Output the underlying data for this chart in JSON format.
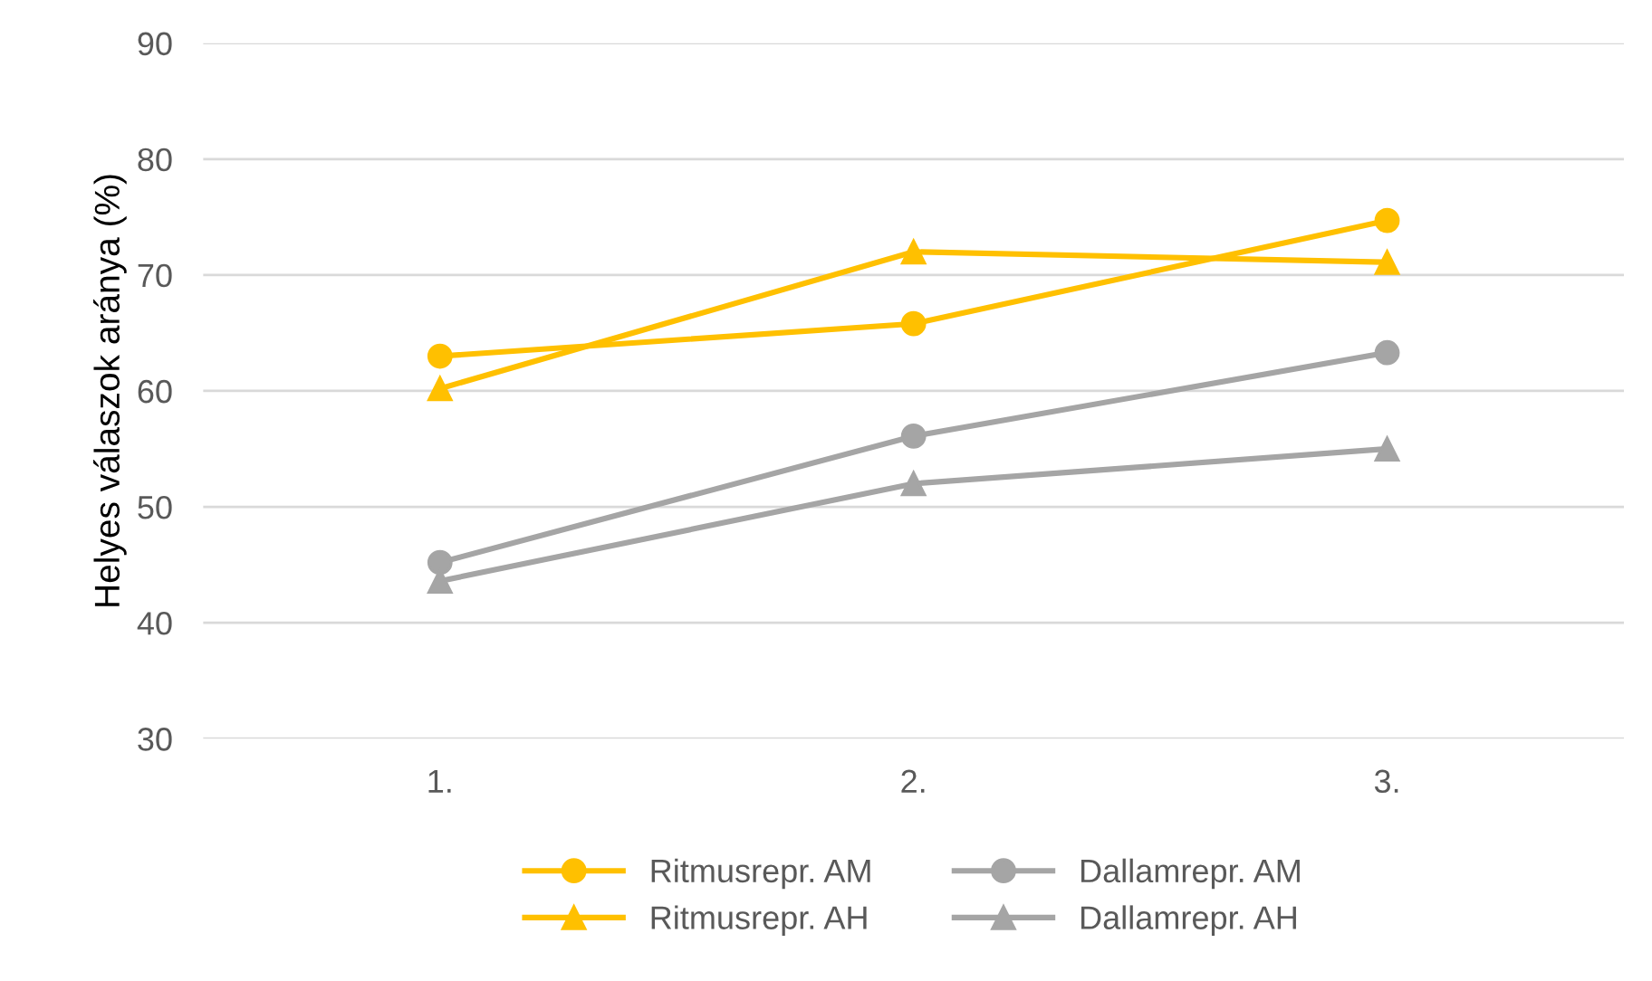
{
  "chart_data": {
    "type": "line",
    "ylabel": "Helyes válaszok aránya (%)",
    "categories": [
      "1.",
      "2.",
      "3."
    ],
    "series": [
      {
        "name": "Ritmusrepr. AM",
        "color": "#ffc000",
        "marker": "circle",
        "values": [
          63.0,
          65.8,
          74.7
        ]
      },
      {
        "name": "Ritmusrepr. AH",
        "color": "#ffc000",
        "marker": "triangle",
        "values": [
          60.2,
          72.0,
          71.1
        ]
      },
      {
        "name": "Dallamrepr. AM",
        "color": "#a5a5a5",
        "marker": "circle",
        "values": [
          45.2,
          56.1,
          63.3
        ]
      },
      {
        "name": "Dallamrepr. AH",
        "color": "#a5a5a5",
        "marker": "triangle",
        "values": [
          43.6,
          52.0,
          55.0
        ]
      }
    ],
    "ylim": [
      30,
      90
    ],
    "yticks": [
      30,
      40,
      50,
      60,
      70,
      80,
      90
    ],
    "grid": "y",
    "legend": "bottom",
    "line_style": "solid"
  }
}
